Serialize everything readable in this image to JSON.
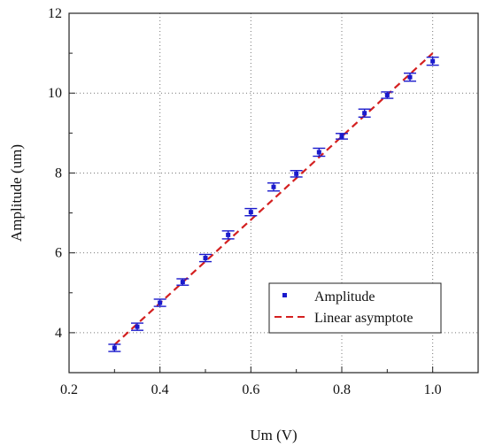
{
  "chart_data": {
    "type": "scatter",
    "xlabel": "Um (V)",
    "ylabel": "Amplitude (um)",
    "xlim": [
      0.2,
      1.1
    ],
    "ylim": [
      3,
      12
    ],
    "xticks": [
      0.2,
      0.4,
      0.6,
      0.8,
      1.0
    ],
    "xtick_labels": [
      "0.2",
      "0.4",
      "0.6",
      "0.8",
      "1.0"
    ],
    "yticks": [
      4,
      6,
      8,
      10,
      12
    ],
    "ytick_labels": [
      "4",
      "6",
      "8",
      "10",
      "12"
    ],
    "grid": true,
    "legend_position": "lower-right",
    "series": [
      {
        "name": "Amplitude",
        "kind": "points-with-errorbars",
        "color": "#1a1acc",
        "x": [
          0.3,
          0.35,
          0.4,
          0.45,
          0.5,
          0.55,
          0.6,
          0.65,
          0.7,
          0.75,
          0.8,
          0.85,
          0.9,
          0.95,
          1.0
        ],
        "y": [
          3.62,
          4.15,
          4.75,
          5.27,
          5.87,
          6.45,
          7.02,
          7.65,
          7.98,
          8.52,
          8.92,
          9.5,
          9.95,
          10.4,
          10.8
        ],
        "err": [
          0.09,
          0.09,
          0.09,
          0.08,
          0.09,
          0.1,
          0.09,
          0.1,
          0.08,
          0.1,
          0.07,
          0.1,
          0.08,
          0.1,
          0.1
        ]
      },
      {
        "name": "Linear asymptote",
        "kind": "dashed-line",
        "color": "#d42020",
        "x": [
          0.3,
          1.0
        ],
        "y": [
          3.7,
          11.0
        ]
      }
    ]
  }
}
